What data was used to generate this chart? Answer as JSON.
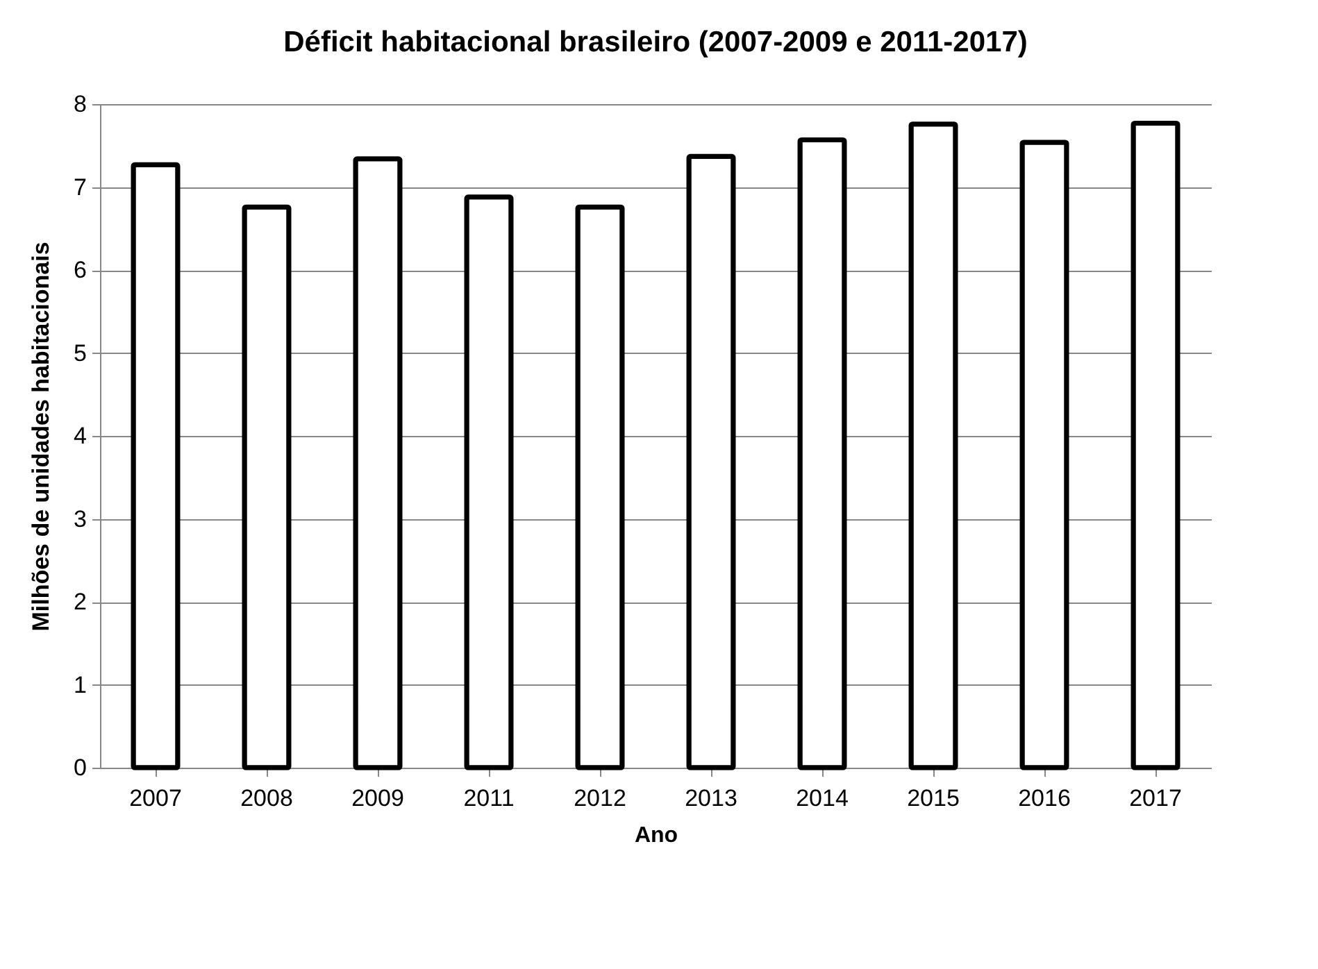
{
  "chart_data": {
    "type": "bar",
    "title": "Déficit habitacional brasileiro (2007-2009 e 2011-2017)",
    "xlabel": "Ano",
    "ylabel": "Milhões de unidades habitacionais",
    "categories": [
      "2007",
      "2008",
      "2009",
      "2011",
      "2012",
      "2013",
      "2014",
      "2015",
      "2016",
      "2017"
    ],
    "values": [
      7.27,
      6.76,
      7.34,
      6.88,
      6.76,
      7.37,
      7.57,
      7.76,
      7.54,
      7.77
    ],
    "color": "#ffffff",
    "ylim": [
      0,
      8
    ],
    "yticks": [
      0,
      1,
      2,
      3,
      4,
      5,
      6,
      7,
      8
    ],
    "grid": "y"
  }
}
